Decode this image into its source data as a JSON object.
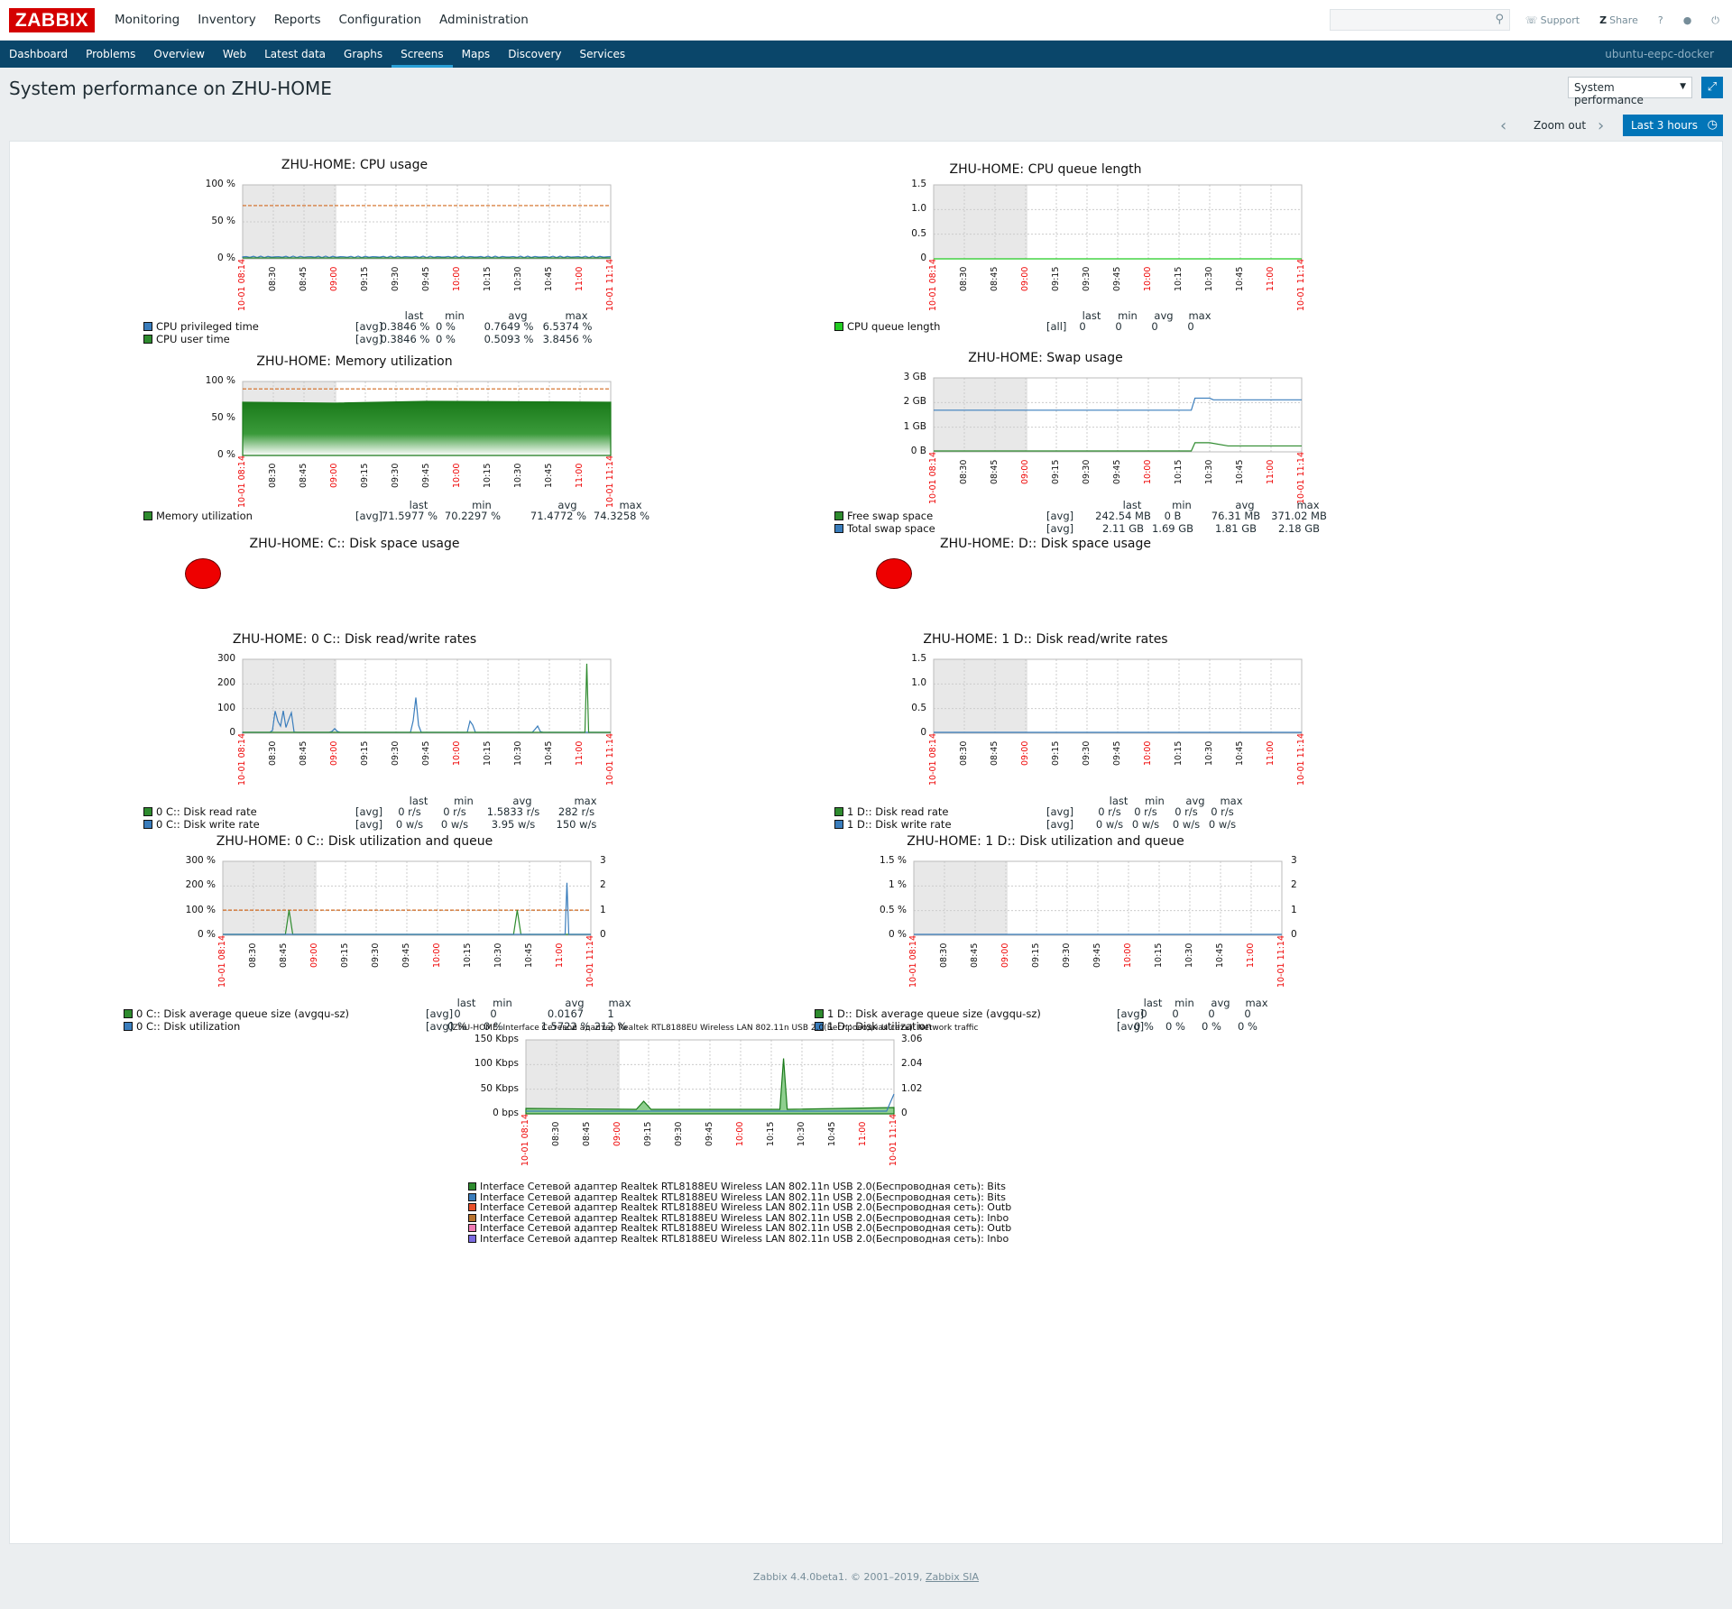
{
  "topnav": {
    "logo": "ZABBIX",
    "menu": [
      "Monitoring",
      "Inventory",
      "Reports",
      "Configuration",
      "Administration"
    ],
    "support": "Support",
    "share": "Share",
    "help": "?"
  },
  "subnav": {
    "items": [
      "Dashboard",
      "Problems",
      "Overview",
      "Web",
      "Latest data",
      "Graphs",
      "Screens",
      "Maps",
      "Discovery",
      "Services"
    ],
    "active": "Screens",
    "host": "ubuntu-eepc-docker"
  },
  "page": {
    "title": "System performance on ZHU-HOME",
    "screen_select": "System performance",
    "zoom_out": "Zoom out",
    "time_range": "Last 3 hours"
  },
  "xticks": [
    "10-01 08:14",
    "08:30",
    "08:45",
    "09:00",
    "09:15",
    "09:30",
    "09:45",
    "10:00",
    "10:15",
    "10:30",
    "10:45",
    "11:00",
    "10-01 11:14"
  ],
  "xticks_red": [
    true,
    false,
    false,
    true,
    false,
    false,
    false,
    true,
    false,
    false,
    false,
    true,
    true
  ],
  "legend_headers": {
    "last": "last",
    "min": "min",
    "avg": "avg",
    "max": "max"
  },
  "graphs": {
    "cpu": {
      "title": "ZHU-HOME: CPU usage",
      "yticks": [
        "100 %",
        "50 %",
        "0 %"
      ],
      "rows": [
        {
          "name": "CPU privileged time",
          "color": "#3a7dbc",
          "fn": "[avg]",
          "last": "0.3846 %",
          "min": "0 %",
          "avg": "0.7649 %",
          "max": "6.5374 %"
        },
        {
          "name": "CPU user time",
          "color": "#2e8b2e",
          "fn": "[avg]",
          "last": "0.3846 %",
          "min": "0 %",
          "avg": "0.5093 %",
          "max": "3.8456 %"
        }
      ]
    },
    "cpuq": {
      "title": "ZHU-HOME: CPU queue length",
      "yticks": [
        "1.5",
        "1.0",
        "0.5",
        "0"
      ],
      "rows": [
        {
          "name": "CPU queue length",
          "color": "#22cc22",
          "fn": "[all]",
          "last": "0",
          "min": "0",
          "avg": "0",
          "max": "0"
        }
      ]
    },
    "mem": {
      "title": "ZHU-HOME: Memory utilization",
      "yticks": [
        "100 %",
        "50 %",
        "0 %"
      ],
      "rows": [
        {
          "name": "Memory utilization",
          "color": "#2e8b2e",
          "fn": "[avg]",
          "last": "71.5977 %",
          "min": "70.2297 %",
          "avg": "71.4772 %",
          "max": "74.3258 %"
        }
      ]
    },
    "swap": {
      "title": "ZHU-HOME: Swap usage",
      "yticks": [
        "3 GB",
        "2 GB",
        "1 GB",
        "0 B"
      ],
      "rows": [
        {
          "name": "Free swap space",
          "color": "#2e8b2e",
          "fn": "[avg]",
          "last": "242.54 MB",
          "min": "0 B",
          "avg": "76.31 MB",
          "max": "371.02 MB"
        },
        {
          "name": "Total swap space",
          "color": "#3a7dbc",
          "fn": "[avg]",
          "last": "2.11 GB",
          "min": "1.69 GB",
          "avg": "1.81 GB",
          "max": "2.18 GB"
        }
      ]
    },
    "diskc": {
      "title": "ZHU-HOME: C:: Disk space usage"
    },
    "diskd": {
      "title": "ZHU-HOME: D:: Disk space usage"
    },
    "rwc": {
      "title": "ZHU-HOME: 0 C:: Disk read/write rates",
      "yticks": [
        "300",
        "200",
        "100",
        "0"
      ],
      "rows": [
        {
          "name": "0 C:: Disk read rate",
          "color": "#2e8b2e",
          "fn": "[avg]",
          "last": "0 r/s",
          "min": "0 r/s",
          "avg": "1.5833 r/s",
          "max": "282 r/s"
        },
        {
          "name": "0 C:: Disk write rate",
          "color": "#3a7dbc",
          "fn": "[avg]",
          "last": "0 w/s",
          "min": "0 w/s",
          "avg": "3.95 w/s",
          "max": "150 w/s"
        }
      ]
    },
    "rwd": {
      "title": "ZHU-HOME: 1 D:: Disk read/write rates",
      "yticks": [
        "1.5",
        "1.0",
        "0.5",
        "0"
      ],
      "rows": [
        {
          "name": "1 D:: Disk read rate",
          "color": "#2e8b2e",
          "fn": "[avg]",
          "last": "0 r/s",
          "min": "0 r/s",
          "avg": "0 r/s",
          "max": "0 r/s"
        },
        {
          "name": "1 D:: Disk write rate",
          "color": "#3a7dbc",
          "fn": "[avg]",
          "last": "0 w/s",
          "min": "0 w/s",
          "avg": "0 w/s",
          "max": "0 w/s"
        }
      ]
    },
    "uqc": {
      "title": "ZHU-HOME: 0 C:: Disk utilization and queue",
      "yticks": [
        "300 %",
        "200 %",
        "100 %",
        "0 %"
      ],
      "yticks_right": [
        "3",
        "2",
        "1",
        "0"
      ],
      "rows": [
        {
          "name": "0 C:: Disk average queue size (avgqu-sz)",
          "color": "#2e8b2e",
          "fn": "[avg]",
          "last": "0",
          "min": "0",
          "avg": "0.0167",
          "max": "1"
        },
        {
          "name": "0 C:: Disk utilization",
          "color": "#3a7dbc",
          "fn": "[avg]",
          "last": "0 %",
          "min": "0 %",
          "avg": "1.5722 %",
          "max": "212 %"
        }
      ]
    },
    "uqd": {
      "title": "ZHU-HOME: 1 D:: Disk utilization and queue",
      "yticks": [
        "1.5 %",
        "1 %",
        "0.5 %",
        "0 %"
      ],
      "yticks_right": [
        "3",
        "2",
        "1",
        "0"
      ],
      "rows": [
        {
          "name": "1 D:: Disk average queue size (avgqu-sz)",
          "color": "#2e8b2e",
          "fn": "[avg]",
          "last": "0",
          "min": "0",
          "avg": "0",
          "max": "0"
        },
        {
          "name": "1 D:: Disk utilization",
          "color": "#3a7dbc",
          "fn": "[avg]",
          "last": "0 %",
          "min": "0 %",
          "avg": "0 %",
          "max": "0 %"
        }
      ]
    },
    "net": {
      "title": "ZHU-HOME: Interface Сетевой адаптер Realtek RTL8188EU Wireless LAN 802.11n USB 2.0(Беспроводная сеть): Network traffic",
      "yticks": [
        "150 Kbps",
        "100 Kbps",
        "50 Kbps",
        "0 bps"
      ],
      "yticks_right": [
        "3.06",
        "2.04",
        "1.02",
        "0"
      ],
      "rows": [
        {
          "name": "Interface Сетевой адаптер Realtek RTL8188EU Wireless LAN 802.11n USB 2.0(Беспроводная сеть): Bits",
          "color": "#2e8b2e"
        },
        {
          "name": "Interface Сетевой адаптер Realtek RTL8188EU Wireless LAN 802.11n USB 2.0(Беспроводная сеть): Bits",
          "color": "#3a7dbc"
        },
        {
          "name": "Interface Сетевой адаптер Realtek RTL8188EU Wireless LAN 802.11n USB 2.0(Беспроводная сеть): Outb",
          "color": "#e8502a"
        },
        {
          "name": "Interface Сетевой адаптер Realtek RTL8188EU Wireless LAN 802.11n USB 2.0(Беспроводная сеть): Inbo",
          "color": "#b8732f"
        },
        {
          "name": "Interface Сетевой адаптер Realtek RTL8188EU Wireless LAN 802.11n USB 2.0(Беспроводная сеть): Outb",
          "color": "#f07ab3"
        },
        {
          "name": "Interface Сетевой адаптер Realtek RTL8188EU Wireless LAN 802.11n USB 2.0(Беспроводная сеть): Inbo",
          "color": "#7a6ae0"
        }
      ]
    }
  },
  "footer": {
    "text": "Zabbix 4.4.0beta1. © 2001–2019, ",
    "link": "Zabbix SIA"
  }
}
